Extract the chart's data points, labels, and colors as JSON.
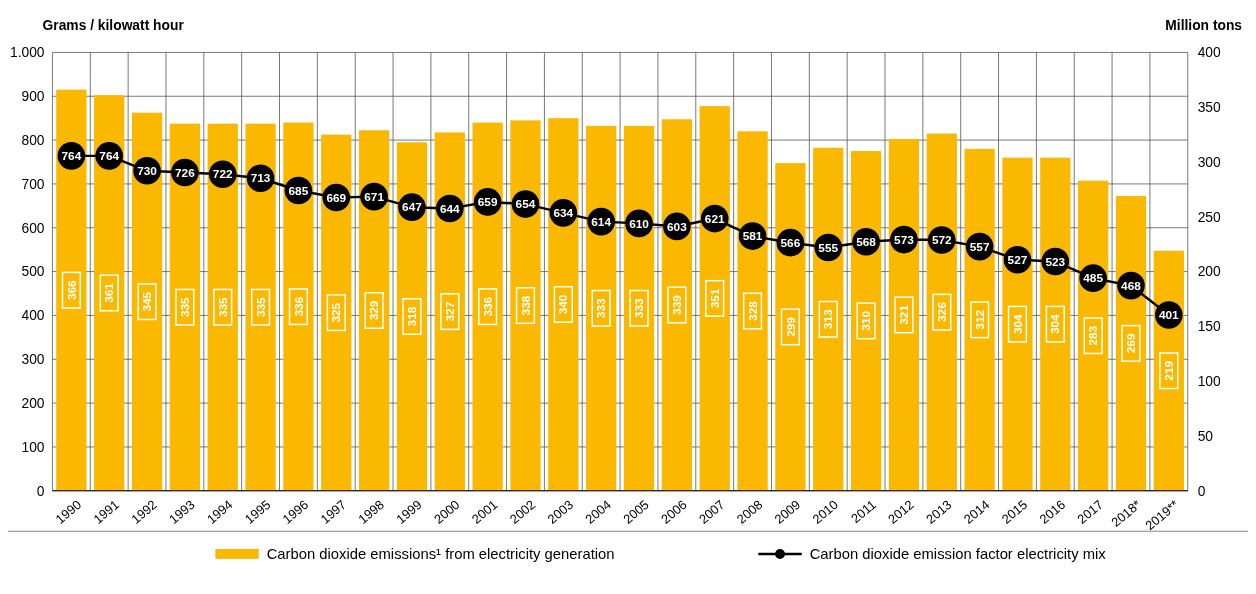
{
  "chart_data": {
    "type": "bar",
    "ylabel": "Grams / kilowatt hour",
    "y2label": "Million tons",
    "categories": [
      "1990",
      "1991",
      "1992",
      "1993",
      "1994",
      "1995",
      "1996",
      "1997",
      "1998",
      "1999",
      "2000",
      "2001",
      "2002",
      "2003",
      "2004",
      "2005",
      "2006",
      "2007",
      "2008",
      "2009",
      "2010",
      "2011",
      "2012",
      "2013",
      "2014",
      "2015",
      "2016",
      "2017",
      "2018*",
      "2019**"
    ],
    "series": [
      {
        "name": "Carbon dioxide emissions¹ from electricity generation",
        "axis": "y2",
        "color": "#fbb800",
        "values": [
          366,
          361,
          345,
          335,
          335,
          335,
          336,
          325,
          329,
          318,
          327,
          336,
          338,
          340,
          333,
          333,
          339,
          351,
          328,
          299,
          313,
          310,
          321,
          326,
          312,
          304,
          304,
          283,
          269,
          219
        ]
      },
      {
        "name": "Carbon dioxide emission factor electricity mix",
        "type": "line",
        "color": "#000000",
        "marker": "circle",
        "values": [
          764,
          764,
          730,
          726,
          722,
          713,
          685,
          669,
          671,
          647,
          644,
          659,
          654,
          634,
          614,
          610,
          603,
          621,
          581,
          566,
          555,
          568,
          573,
          572,
          557,
          527,
          523,
          485,
          468,
          401
        ]
      }
    ],
    "ylim": [
      0,
      1000
    ],
    "yticks": [
      0,
      100,
      200,
      300,
      400,
      500,
      600,
      700,
      800,
      900,
      {
        "value": 1000,
        "label": "1.000"
      }
    ],
    "y2lim": [
      0,
      400
    ],
    "y2ticks": [
      0,
      50,
      100,
      150,
      200,
      250,
      300,
      350,
      400
    ],
    "grid": true,
    "legend": "bottom",
    "data_labels": true
  }
}
